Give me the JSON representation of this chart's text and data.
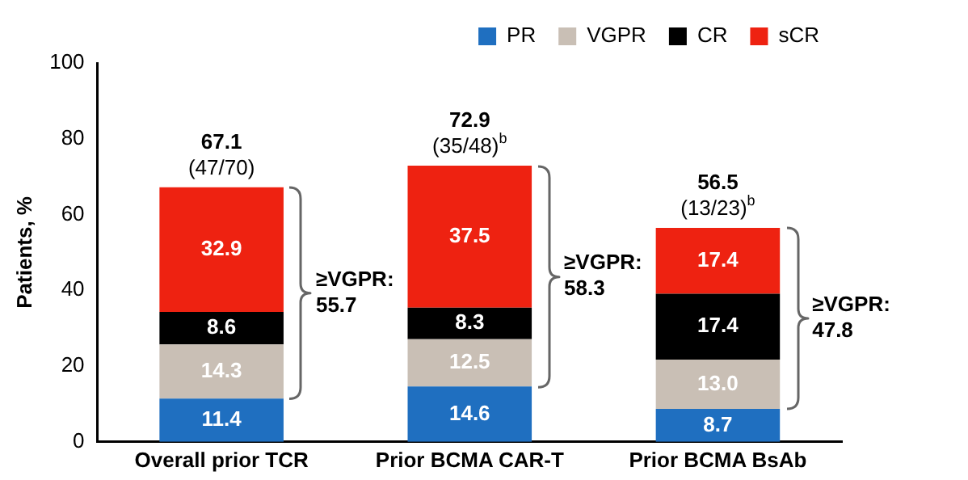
{
  "chart_data": {
    "type": "bar",
    "stacked": true,
    "ylabel": "Patients, %",
    "categories": [
      "Overall prior TCR",
      "Prior BCMA CAR-T",
      "Prior BCMA BsAb"
    ],
    "series": [
      {
        "name": "PR",
        "color": "#1f6fc0",
        "values": [
          11.4,
          14.6,
          8.7
        ],
        "value_labels": [
          "11.4",
          "14.6",
          "8.7"
        ]
      },
      {
        "name": "VGPR",
        "color": "#c9bfb5",
        "values": [
          14.3,
          12.5,
          13.0
        ],
        "value_labels": [
          "14.3",
          "12.5",
          "13.0"
        ]
      },
      {
        "name": "CR",
        "color": "#000000",
        "values": [
          8.6,
          8.3,
          17.4
        ],
        "value_labels": [
          "8.6",
          "8.3",
          "17.4"
        ]
      },
      {
        "name": "sCR",
        "color": "#ee2211",
        "values": [
          32.9,
          37.5,
          17.4
        ],
        "value_labels": [
          "32.9",
          "37.5",
          "17.4"
        ]
      }
    ],
    "totals": [
      "67.1\n(47/70)",
      "72.9\n(35/48)$^{b}$",
      "56.5\n(13/23)$^{b}$"
    ],
    "annotations": [
      "≥VGPR: 55.7",
      "≥VGPR: 58.3",
      "≥VGPR: 47.8"
    ],
    "ylim": [
      0,
      100
    ],
    "yticks": [
      0,
      20,
      40,
      60,
      80,
      100
    ],
    "grid": false,
    "legend": "top right"
  }
}
